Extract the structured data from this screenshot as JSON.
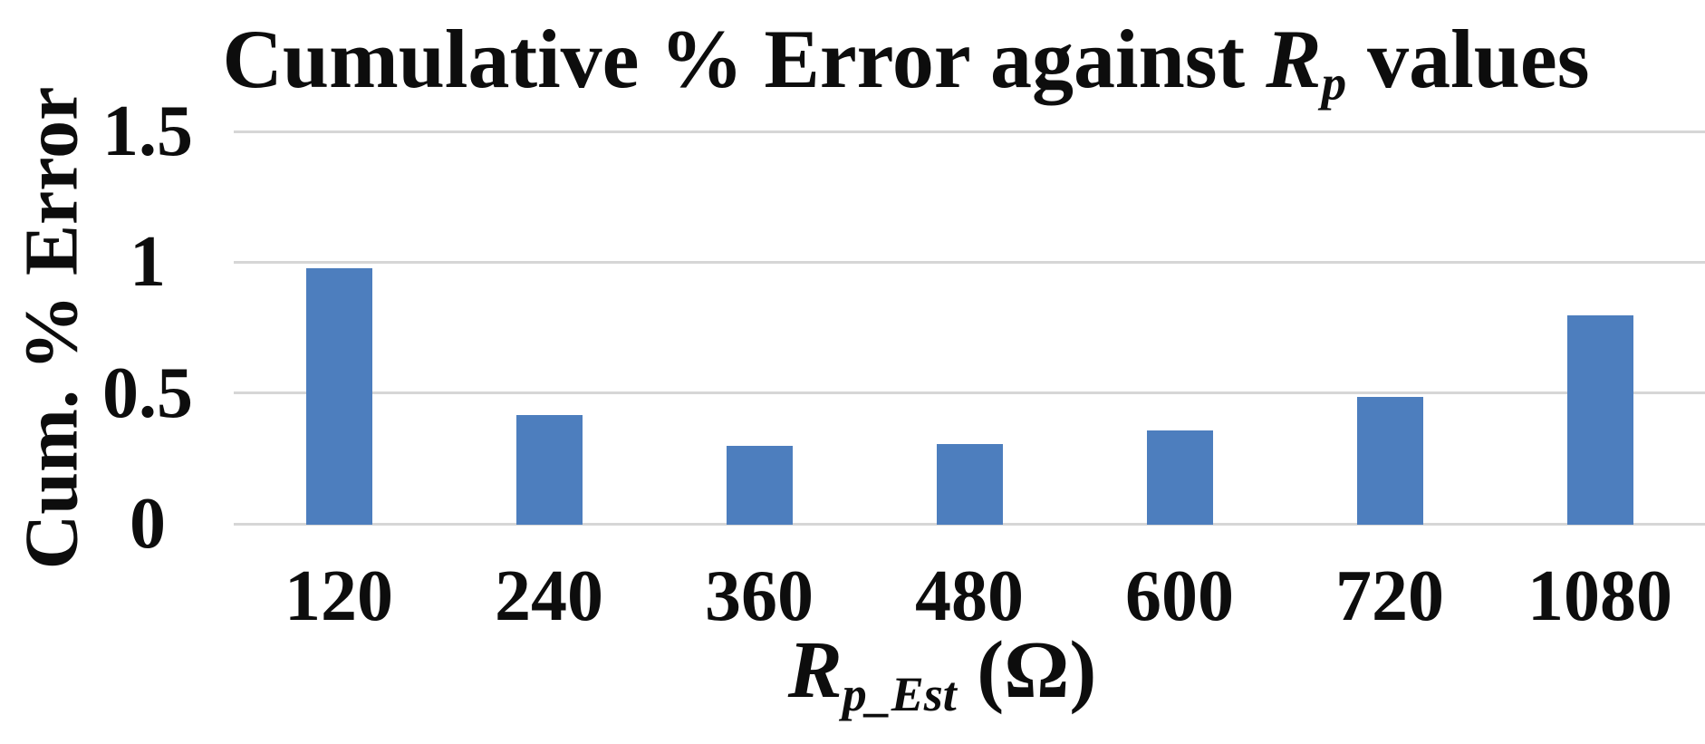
{
  "chart_data": {
    "type": "bar",
    "title": "Cumulative % Error against Rp values",
    "title_parts": {
      "prefix": "Cumulative % Error against ",
      "var": "R",
      "var_sub": "p",
      "suffix": " values"
    },
    "categories": [
      "120",
      "240",
      "360",
      "480",
      "600",
      "720",
      "1080"
    ],
    "values": [
      0.98,
      0.42,
      0.3,
      0.31,
      0.36,
      0.49,
      0.8
    ],
    "xlabel": "Rp_Est (Ohm)",
    "xlabel_parts": {
      "var": "R",
      "var_sub": "p_Est",
      "suffix": " (Ω)"
    },
    "ylabel": "Cum. % Error",
    "ylim": [
      0,
      1.5
    ],
    "yticks": [
      1.5,
      1,
      0.5,
      0
    ],
    "ytick_labels": [
      "1.5",
      "1",
      "0.5",
      "0"
    ],
    "grid": true,
    "legend": false,
    "colors": {
      "bar": "#4D7EBE",
      "gridline": "#D6D6D6",
      "text": "#0D0D0D",
      "background": "#FFFFFF"
    }
  }
}
